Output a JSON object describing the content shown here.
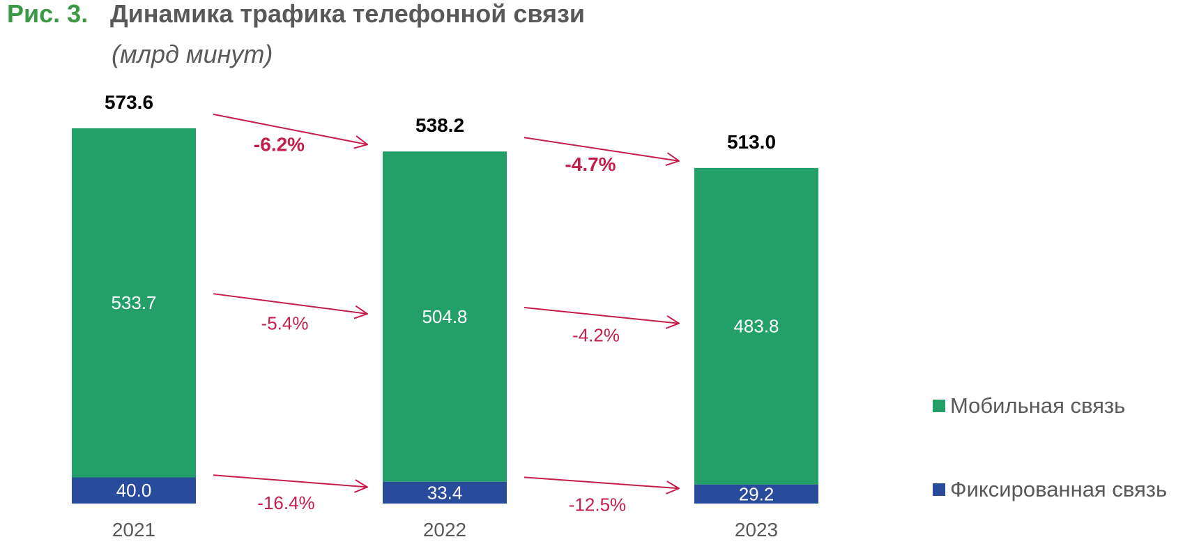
{
  "header": {
    "figure_label": "Рис. 3.",
    "title": "Динамика трафика телефонной связи",
    "subtitle": "(млрд минут)"
  },
  "colors": {
    "figure_label": "#3a9a44",
    "title": "#595959",
    "mobile": "#22a067",
    "fixed": "#284b9c",
    "growth": "#c41e4a",
    "text": "#000000",
    "tick": "#595959",
    "on_bar_text": "#ffffff"
  },
  "chart_data": {
    "type": "bar",
    "stacked": true,
    "categories": [
      "2021",
      "2022",
      "2023"
    ],
    "series": [
      {
        "name": "Фиксированная связь",
        "values": [
          40.0,
          33.4,
          29.2
        ],
        "labels": [
          "40.0",
          "33.4",
          "29.2"
        ],
        "color": "#284b9c"
      },
      {
        "name": "Мобильная связь",
        "values": [
          533.7,
          504.8,
          483.8
        ],
        "labels": [
          "533.7",
          "504.8",
          "483.8"
        ],
        "color": "#22a067"
      }
    ],
    "totals": [
      573.6,
      538.2,
      513.0
    ],
    "total_labels": [
      "573.6",
      "538.2",
      "513.0"
    ],
    "growth": {
      "total": [
        "-6.2%",
        "-4.7%"
      ],
      "mobile": [
        "-5.4%",
        "-4.2%"
      ],
      "fixed": [
        "-16.4%",
        "-12.5%"
      ]
    },
    "ylim": [
      0,
      573.6
    ],
    "grid": false,
    "legend": {
      "position": "right",
      "items": [
        "Мобильная связь",
        "Фиксированная связь"
      ]
    },
    "xlabel": "",
    "ylabel": ""
  }
}
